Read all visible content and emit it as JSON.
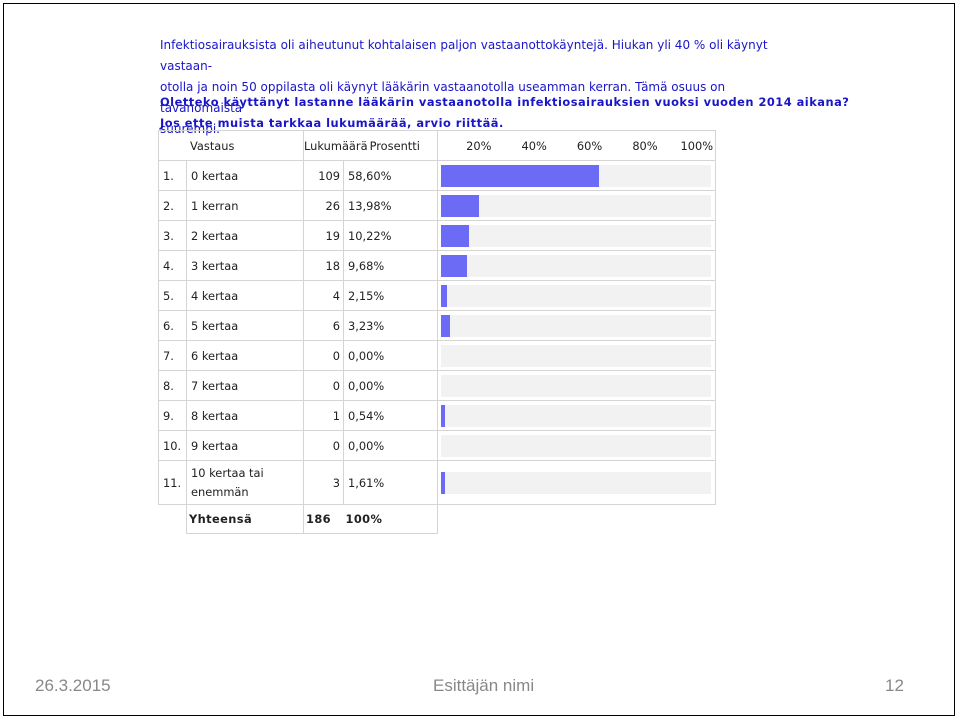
{
  "intro": {
    "line1": "Infektiosairauksista oli aiheutunut kohtalaisen paljon vastaanottokäyntejä. Hiukan yli 40 % oli käynyt vastaan-",
    "line2": "otolla ja noin 50 oppilasta oli käynyt lääkärin vastaanotolla useamman kerran. Tämä osuus on tavanomaista",
    "line3": "suurempi."
  },
  "question": {
    "line1": "Oletteko käyttänyt lastanne lääkärin vastaanotolla infektiosairauksien vuoksi vuoden 2014 aikana?",
    "line2": "Jos ette muista tarkkaa lukumäärää, arvio riittää."
  },
  "table": {
    "headers": {
      "answer": "Vastaus",
      "count": "Lukumäärä",
      "percent": "Prosentti",
      "scale": [
        "20%",
        "40%",
        "60%",
        "80%",
        "100%"
      ]
    },
    "rows": [
      {
        "num": "1.",
        "label": "0 kertaa",
        "count": "109",
        "percent": "58,60%",
        "value": 58.6
      },
      {
        "num": "2.",
        "label": "1 kerran",
        "count": "26",
        "percent": "13,98%",
        "value": 13.98
      },
      {
        "num": "3.",
        "label": "2 kertaa",
        "count": "19",
        "percent": "10,22%",
        "value": 10.22
      },
      {
        "num": "4.",
        "label": "3 kertaa",
        "count": "18",
        "percent": "9,68%",
        "value": 9.68
      },
      {
        "num": "5.",
        "label": "4 kertaa",
        "count": "4",
        "percent": "2,15%",
        "value": 2.15
      },
      {
        "num": "6.",
        "label": "5 kertaa",
        "count": "6",
        "percent": "3,23%",
        "value": 3.23
      },
      {
        "num": "7.",
        "label": "6 kertaa",
        "count": "0",
        "percent": "0,00%",
        "value": 0
      },
      {
        "num": "8.",
        "label": "7 kertaa",
        "count": "0",
        "percent": "0,00%",
        "value": 0
      },
      {
        "num": "9.",
        "label": "8 kertaa",
        "count": "1",
        "percent": "0,54%",
        "value": 0.54
      },
      {
        "num": "10.",
        "label": "9 kertaa",
        "count": "0",
        "percent": "0,00%",
        "value": 0
      },
      {
        "num": "11.",
        "label": "10 kertaa tai enemmän",
        "count": "3",
        "percent": "1,61%",
        "value": 1.61
      }
    ],
    "total": {
      "label": "Yhteensä",
      "count": "186",
      "percent": "100%"
    },
    "bar_color": "#6b6bf5",
    "track_color": "#f2f2f2"
  },
  "footer": {
    "date": "26.3.2015",
    "presenter": "Esittäjän nimi",
    "page": "12"
  }
}
